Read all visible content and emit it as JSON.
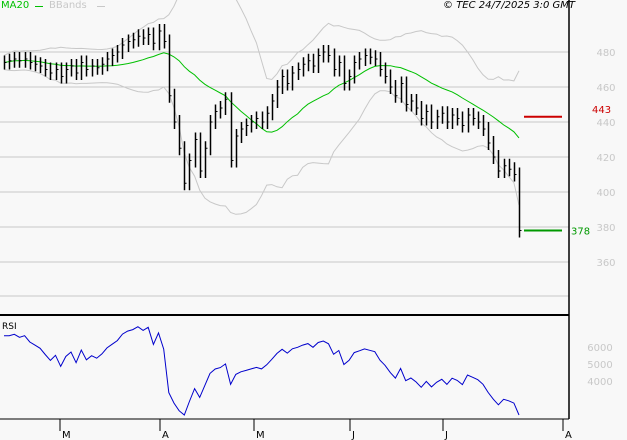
{
  "header": {
    "legend": [
      {
        "label": "MA20",
        "color": "#00c000"
      },
      {
        "label": "BBands",
        "color": "#c8c8c8"
      }
    ],
    "copyright": "© TEC 24/7/2025 3:0 GMT"
  },
  "chart_data": [
    {
      "type": "bar",
      "style": "price-bars",
      "price_axis": {
        "ticks": [
          "480",
          "460",
          "440",
          "420",
          "400",
          "380",
          "360"
        ],
        "range": [
          340,
          510
        ],
        "grid": true
      },
      "x_axis": {
        "ticks": [
          "M",
          "A",
          "M",
          "J",
          "J",
          "A"
        ]
      },
      "close": [
        474,
        475,
        476,
        475,
        476,
        474,
        473,
        472,
        470,
        468,
        470,
        466,
        470,
        472,
        468,
        474,
        470,
        472,
        471,
        473,
        476,
        478,
        480,
        484,
        486,
        487,
        489,
        488,
        490,
        485,
        492,
        486,
        455,
        440,
        425,
        405,
        418,
        430,
        412,
        425,
        440,
        446,
        448,
        453,
        418,
        432,
        436,
        438,
        440,
        442,
        440,
        445,
        452,
        460,
        466,
        462,
        468,
        470,
        473,
        475,
        472,
        478,
        480,
        478,
        470,
        474,
        462,
        466,
        474,
        476,
        478,
        477,
        476,
        470,
        466,
        460,
        455,
        462,
        450,
        452,
        448,
        442,
        446,
        440,
        443,
        445,
        440,
        444,
        442,
        438,
        444,
        442,
        440,
        436,
        428,
        420,
        412,
        415,
        413,
        410,
        378
      ],
      "indicators": [
        "MA20",
        "BBands"
      ],
      "levels": [
        {
          "value": "443",
          "color": "#cc0000"
        },
        {
          "value": "378",
          "color": "#009900"
        }
      ]
    },
    {
      "type": "line",
      "title": "RSI",
      "y_axis": {
        "ticks": [
          "6000",
          "5000",
          "4000"
        ]
      },
      "color": "#0000cc"
    }
  ]
}
